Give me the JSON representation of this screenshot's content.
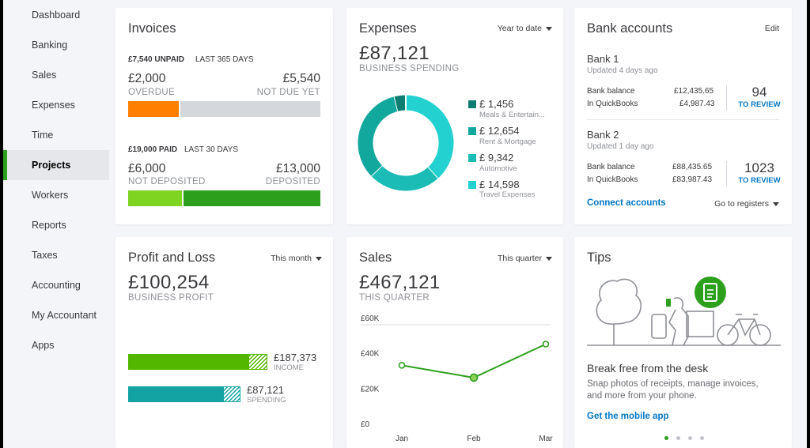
{
  "sidebar": {
    "items": [
      {
        "label": "Dashboard",
        "active": false
      },
      {
        "label": "Banking",
        "active": false
      },
      {
        "label": "Sales",
        "active": false
      },
      {
        "label": "Expenses",
        "active": false
      },
      {
        "label": "Time",
        "active": false
      },
      {
        "label": "Projects",
        "active": true
      },
      {
        "label": "Workers",
        "active": false
      },
      {
        "label": "Reports",
        "active": false
      },
      {
        "label": "Taxes",
        "active": false
      },
      {
        "label": "Accounting",
        "active": false
      },
      {
        "label": "My Accountant",
        "active": false
      },
      {
        "label": "Apps",
        "active": false
      }
    ]
  },
  "invoices": {
    "title": "Invoices",
    "unpaid_amount": "£7,540 UNPAID",
    "unpaid_period": "LAST 365 DAYS",
    "overdue_value": "£2,000",
    "overdue_label": "OVERDUE",
    "not_due_value": "£5,540",
    "not_due_label": "NOT DUE YET",
    "overdue_fraction": 0.27,
    "paid_amount": "£19,000 PAID",
    "paid_period": "LAST 30 DAYS",
    "not_deposited_value": "£6,000",
    "not_deposited_label": "NOT DEPOSITED",
    "deposited_value": "£13,000",
    "deposited_label": "DEPOSITED",
    "not_deposited_fraction": 0.29
  },
  "expenses": {
    "title": "Expenses",
    "period": "Year to date",
    "total": "£87,121",
    "subtitle": "BUSINESS SPENDING",
    "items": [
      {
        "value": "£ 1,456",
        "label": "Meals & Entertain...",
        "color": "#0d7d72",
        "amount": 1456
      },
      {
        "value": "£ 12,654",
        "label": "Rent & Mortgage",
        "color": "#13a89e",
        "amount": 12654
      },
      {
        "value": "£ 9,342",
        "label": "Automotive",
        "color": "#1cbcb6",
        "amount": 9342
      },
      {
        "value": "£ 14,598",
        "label": "Travel Expenses",
        "color": "#23d2d0",
        "amount": 14598
      }
    ]
  },
  "bank": {
    "title": "Bank accounts",
    "edit": "Edit",
    "accounts": [
      {
        "name": "Bank 1",
        "updated": "Updated 4 days ago",
        "bank_balance_label": "Bank balance",
        "bank_balance": "£12,435.65",
        "qb_label": "In QuickBooks",
        "qb_balance": "£4,987.43",
        "review_count": "94",
        "review_label": "TO REVIEW"
      },
      {
        "name": "Bank 2",
        "updated": "Updated 1 day ago",
        "bank_balance_label": "Bank balance",
        "bank_balance": "£88,435.65",
        "qb_label": "In QuickBooks",
        "qb_balance": "£83,987.43",
        "review_count": "1023",
        "review_label": "TO REVIEW"
      }
    ],
    "connect": "Connect accounts",
    "registers": "Go to registers"
  },
  "pnl": {
    "title": "Profit and Loss",
    "period": "This month",
    "total": "£100,254",
    "subtitle": "BUSINESS PROFIT",
    "income_value": "£187,373",
    "income_label": "INCOME",
    "spending_value": "£87,121",
    "spending_label": "SPENDING",
    "income_color": "#53b700",
    "spending_color": "#13a3a3"
  },
  "sales": {
    "title": "Sales",
    "period": "This quarter",
    "total": "£467,121",
    "subtitle": "THIS QUARTER"
  },
  "chart_data": {
    "type": "line",
    "x": [
      "Jan",
      "Feb",
      "Mar"
    ],
    "series": [
      {
        "values": [
          33000,
          26000,
          45000
        ]
      }
    ],
    "yticks": [
      "£60K",
      "£40K",
      "£20K",
      "£0"
    ],
    "ylim": [
      0,
      60000
    ],
    "color": "#2ca01c"
  },
  "tips": {
    "title": "Tips",
    "heading": "Break free from the desk",
    "body_line1": "Snap photos of receipts, manage invoices,",
    "body_line2": "and more from your phone.",
    "cta": "Get the mobile app",
    "dots": 4,
    "active_dot": 0
  }
}
